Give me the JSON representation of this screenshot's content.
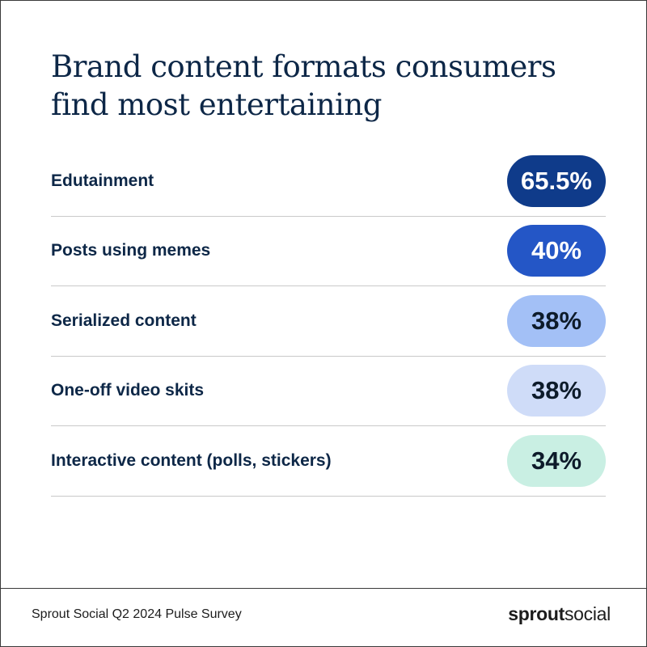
{
  "title": "Brand content formats consumers find most entertaining",
  "chart_data": {
    "type": "table",
    "title": "Brand content formats consumers find most entertaining",
    "categories": [
      "Edutainment",
      "Posts using memes",
      "Serialized content",
      "One-off video skits",
      "Interactive content (polls, stickers)"
    ],
    "values": [
      65.5,
      40,
      38,
      38,
      34
    ],
    "value_labels": [
      "65.5%",
      "40%",
      "38%",
      "38%",
      "34%"
    ],
    "unit": "%",
    "pill_colors": [
      "#0f3b8a",
      "#2456c6",
      "#a3c0f6",
      "#cfdcf8",
      "#c9efe3"
    ],
    "pill_text_colors": [
      "#ffffff",
      "#ffffff",
      "#0d1b2a",
      "#0d1b2a",
      "#0d1b2a"
    ]
  },
  "footer": {
    "source": "Sprout Social Q2 2024 Pulse Survey",
    "logo_bold": "sprout",
    "logo_regular": "social"
  }
}
